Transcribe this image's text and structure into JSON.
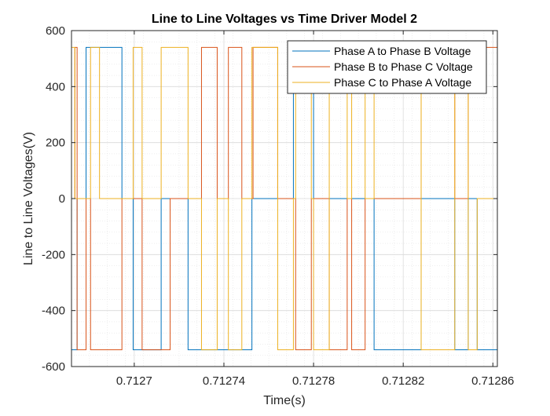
{
  "chart_data": {
    "type": "line",
    "title": "Line to Line Voltages vs Time Driver Model 2",
    "xlabel": "Time(s)",
    "ylabel": "Line to Line Voltages(V)",
    "xlim": [
      0.712672,
      0.712862
    ],
    "ylim": [
      -600,
      600
    ],
    "xticks": [
      0.7127,
      0.71274,
      0.71278,
      0.71282,
      0.71286
    ],
    "xtick_labels": [
      "0.7127",
      "0.71274",
      "0.71278",
      "0.71282",
      "0.71286"
    ],
    "yticks": [
      -600,
      -400,
      -200,
      0,
      200,
      400,
      600
    ],
    "ytick_labels": [
      "-600",
      "-400",
      "-200",
      "0",
      "200",
      "400",
      "600"
    ],
    "grid": true,
    "minor_grid": true,
    "legend_position": "top-right",
    "series": [
      {
        "name": "Phase A to Phase B Voltage",
        "color": "#0072BD",
        "points": [
          [
            0.712672,
            -540
          ],
          [
            0.7126745,
            -540
          ],
          [
            0.7126745,
            0
          ],
          [
            0.7126785,
            0
          ],
          [
            0.7126785,
            540
          ],
          [
            0.7126945,
            540
          ],
          [
            0.7126945,
            0
          ],
          [
            0.7126995,
            0
          ],
          [
            0.7126995,
            -540
          ],
          [
            0.712712,
            -540
          ],
          [
            0.712712,
            0
          ],
          [
            0.712724,
            0
          ],
          [
            0.712724,
            -540
          ],
          [
            0.7127525,
            -540
          ],
          [
            0.7127525,
            0
          ],
          [
            0.712771,
            0
          ],
          [
            0.712771,
            540
          ],
          [
            0.71278,
            540
          ],
          [
            0.71278,
            0
          ],
          [
            0.712807,
            0
          ],
          [
            0.712807,
            -540
          ],
          [
            0.712828,
            -540
          ],
          [
            0.712828,
            0
          ],
          [
            0.712843,
            0
          ],
          [
            0.712843,
            -540
          ],
          [
            0.712849,
            -540
          ],
          [
            0.712849,
            0
          ],
          [
            0.712853,
            0
          ],
          [
            0.712853,
            -540
          ],
          [
            0.712862,
            -540
          ]
        ]
      },
      {
        "name": "Phase B to Phase C Voltage",
        "color": "#D95319",
        "points": [
          [
            0.712672,
            0
          ],
          [
            0.7126735,
            0
          ],
          [
            0.7126735,
            540
          ],
          [
            0.7126745,
            540
          ],
          [
            0.7126745,
            -540
          ],
          [
            0.7126785,
            -540
          ],
          [
            0.7126785,
            0
          ],
          [
            0.7126805,
            0
          ],
          [
            0.7126805,
            -540
          ],
          [
            0.7126945,
            -540
          ],
          [
            0.7126945,
            0
          ],
          [
            0.7127035,
            0
          ],
          [
            0.7127035,
            -540
          ],
          [
            0.712716,
            -540
          ],
          [
            0.712716,
            0
          ],
          [
            0.71273,
            0
          ],
          [
            0.71273,
            540
          ],
          [
            0.712737,
            540
          ],
          [
            0.712737,
            0
          ],
          [
            0.712742,
            0
          ],
          [
            0.712742,
            540
          ],
          [
            0.712748,
            540
          ],
          [
            0.712748,
            0
          ],
          [
            0.712753,
            0
          ],
          [
            0.712753,
            540
          ],
          [
            0.712764,
            540
          ],
          [
            0.712764,
            0
          ],
          [
            0.712772,
            0
          ],
          [
            0.712772,
            -540
          ],
          [
            0.712779,
            -540
          ],
          [
            0.712779,
            0
          ],
          [
            0.712787,
            0
          ],
          [
            0.712787,
            -540
          ],
          [
            0.712795,
            -540
          ],
          [
            0.712795,
            0
          ],
          [
            0.712797,
            0
          ],
          [
            0.712797,
            -540
          ],
          [
            0.712803,
            -540
          ],
          [
            0.712803,
            0
          ],
          [
            0.712828,
            0
          ],
          [
            0.712828,
            540
          ],
          [
            0.712843,
            540
          ],
          [
            0.712843,
            0
          ],
          [
            0.712849,
            0
          ],
          [
            0.712849,
            540
          ],
          [
            0.712862,
            540
          ]
        ]
      },
      {
        "name": "Phase C to Phase A Voltage",
        "color": "#EDB120",
        "points": [
          [
            0.712672,
            540
          ],
          [
            0.7126735,
            540
          ],
          [
            0.7126735,
            0
          ],
          [
            0.7126805,
            0
          ],
          [
            0.7126805,
            540
          ],
          [
            0.7126845,
            540
          ],
          [
            0.7126845,
            0
          ],
          [
            0.7126995,
            0
          ],
          [
            0.7126995,
            540
          ],
          [
            0.7127035,
            540
          ],
          [
            0.7127035,
            0
          ],
          [
            0.712712,
            0
          ],
          [
            0.712712,
            540
          ],
          [
            0.712724,
            540
          ],
          [
            0.712724,
            0
          ],
          [
            0.71273,
            0
          ],
          [
            0.71273,
            -540
          ],
          [
            0.712737,
            -540
          ],
          [
            0.712737,
            0
          ],
          [
            0.712742,
            0
          ],
          [
            0.712742,
            -540
          ],
          [
            0.712748,
            -540
          ],
          [
            0.712748,
            0
          ],
          [
            0.7127525,
            0
          ],
          [
            0.7127525,
            540
          ],
          [
            0.712764,
            540
          ],
          [
            0.712764,
            -540
          ],
          [
            0.712771,
            -540
          ],
          [
            0.712771,
            0
          ],
          [
            0.712772,
            0
          ],
          [
            0.712772,
            540
          ],
          [
            0.712779,
            540
          ],
          [
            0.712779,
            0
          ],
          [
            0.71278,
            0
          ],
          [
            0.71278,
            -540
          ],
          [
            0.712787,
            -540
          ],
          [
            0.712787,
            540
          ],
          [
            0.712795,
            540
          ],
          [
            0.712795,
            0
          ],
          [
            0.712797,
            0
          ],
          [
            0.712797,
            540
          ],
          [
            0.712803,
            540
          ],
          [
            0.712803,
            0
          ],
          [
            0.712807,
            0
          ],
          [
            0.712807,
            540
          ],
          [
            0.712828,
            540
          ],
          [
            0.712828,
            -540
          ],
          [
            0.712843,
            -540
          ],
          [
            0.712843,
            540
          ],
          [
            0.712849,
            540
          ],
          [
            0.712849,
            -540
          ],
          [
            0.712853,
            -540
          ],
          [
            0.712853,
            0
          ],
          [
            0.712862,
            0
          ]
        ]
      }
    ]
  }
}
